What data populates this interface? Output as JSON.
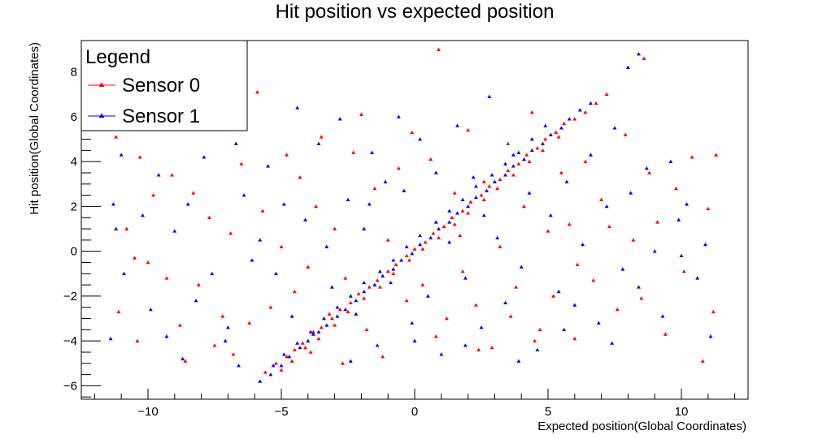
{
  "chart_data": {
    "type": "scatter",
    "title": "Hit position vs expected position",
    "xlabel": "Expected position(Global Coordinates)",
    "ylabel": "Hit position(Global Coordinates)",
    "xlim": [
      -12.5,
      12.5
    ],
    "ylim": [
      -6.6,
      9.4
    ],
    "xticks": [
      -10,
      -5,
      0,
      5,
      10
    ],
    "xtick_labels": [
      "−10",
      "−5",
      "0",
      "5",
      "10"
    ],
    "yticks": [
      -6,
      -4,
      -2,
      0,
      2,
      4,
      6,
      8
    ],
    "ytick_labels": [
      "−6",
      "−4",
      "−2",
      "0",
      "2",
      "4",
      "6",
      "8"
    ],
    "grid": false,
    "legend": {
      "title": "Legend",
      "placement": "top-left",
      "entries": [
        "Sensor 0",
        "Sensor 1"
      ]
    },
    "colors": {
      "Sensor 0": "#ff0000",
      "Sensor 1": "#0000ff"
    },
    "series": [
      {
        "name": "Sensor 0",
        "color": "#ff0000",
        "points": [
          [
            -5.6,
            -5.4
          ],
          [
            -5.2,
            -5.0
          ],
          [
            -4.8,
            -4.7
          ],
          [
            -4.5,
            -4.4
          ],
          [
            -4.2,
            -4.1
          ],
          [
            -3.8,
            -3.6
          ],
          [
            -3.5,
            -3.4
          ],
          [
            -3.1,
            -3.0
          ],
          [
            -2.8,
            -2.6
          ],
          [
            -2.4,
            -2.3
          ],
          [
            -2.1,
            -1.9
          ],
          [
            -1.7,
            -1.6
          ],
          [
            -1.4,
            -1.3
          ],
          [
            -1.0,
            -0.9
          ],
          [
            -0.7,
            -0.6
          ],
          [
            -0.3,
            -0.2
          ],
          [
            0.0,
            0.1
          ],
          [
            0.4,
            0.4
          ],
          [
            0.7,
            0.8
          ],
          [
            1.1,
            1.1
          ],
          [
            1.4,
            1.5
          ],
          [
            1.8,
            1.8
          ],
          [
            2.1,
            2.2
          ],
          [
            2.5,
            2.5
          ],
          [
            2.8,
            2.9
          ],
          [
            3.2,
            3.2
          ],
          [
            3.5,
            3.6
          ],
          [
            3.9,
            3.9
          ],
          [
            4.2,
            4.3
          ],
          [
            4.6,
            4.6
          ],
          [
            4.9,
            5.0
          ],
          [
            5.3,
            5.3
          ],
          [
            5.6,
            5.7
          ],
          [
            6.0,
            5.9
          ],
          [
            6.4,
            6.2
          ],
          [
            6.8,
            6.6
          ],
          [
            7.2,
            7.0
          ],
          [
            8.6,
            8.6
          ],
          [
            -5.0,
            -5.3
          ],
          [
            -4.6,
            -4.9
          ],
          [
            -4.1,
            -4.3
          ],
          [
            -3.6,
            -3.9
          ],
          [
            -3.0,
            -3.3
          ],
          [
            -2.5,
            -2.7
          ],
          [
            -1.9,
            -2.1
          ],
          [
            -1.3,
            -1.6
          ],
          [
            -0.8,
            -1.0
          ],
          [
            -0.2,
            -0.4
          ],
          [
            0.3,
            0.1
          ],
          [
            0.9,
            0.6
          ],
          [
            1.5,
            1.2
          ],
          [
            2.0,
            1.7
          ],
          [
            2.6,
            2.3
          ],
          [
            3.1,
            2.8
          ],
          [
            3.7,
            3.4
          ],
          [
            4.3,
            4.0
          ],
          [
            4.8,
            4.5
          ],
          [
            5.4,
            5.1
          ],
          [
            -11.2,
            5.1
          ],
          [
            -10.3,
            4.2
          ],
          [
            -10.8,
            1.0
          ],
          [
            -10.5,
            -0.3
          ],
          [
            -11.1,
            -2.7
          ],
          [
            -10.4,
            -4.0
          ],
          [
            -10.0,
            -0.5
          ],
          [
            -9.8,
            2.5
          ],
          [
            -9.3,
            -1.2
          ],
          [
            -9.1,
            3.4
          ],
          [
            -8.8,
            -3.3
          ],
          [
            -8.6,
            -4.9
          ],
          [
            -8.3,
            2.6
          ],
          [
            -8.1,
            -1.5
          ],
          [
            -7.7,
            1.5
          ],
          [
            -7.5,
            -4.2
          ],
          [
            -6.9,
            0.8
          ],
          [
            -6.5,
            3.9
          ],
          [
            -6.2,
            -3.2
          ],
          [
            -5.9,
            7.1
          ],
          [
            -5.7,
            1.8
          ],
          [
            -5.4,
            -2.5
          ],
          [
            -5.0,
            0.2
          ],
          [
            -4.8,
            4.3
          ],
          [
            -4.5,
            -1.8
          ],
          [
            -4.3,
            3.3
          ],
          [
            -4.0,
            -0.7
          ],
          [
            -3.7,
            2.0
          ],
          [
            -3.5,
            5.1
          ],
          [
            -3.2,
            -2.8
          ],
          [
            -3.0,
            1.0
          ],
          [
            -2.6,
            -1.2
          ],
          [
            -2.3,
            4.4
          ],
          [
            -2.0,
            6.1
          ],
          [
            -1.8,
            -3.5
          ],
          [
            -1.5,
            2.8
          ],
          [
            -1.2,
            -4.7
          ],
          [
            -1.0,
            0.5
          ],
          [
            -0.6,
            3.7
          ],
          [
            -0.3,
            -2.2
          ],
          [
            -0.1,
            5.3
          ],
          [
            0.3,
            -1.5
          ],
          [
            0.6,
            4.1
          ],
          [
            0.9,
            9.0
          ],
          [
            1.2,
            -3.0
          ],
          [
            1.5,
            2.6
          ],
          [
            1.8,
            -0.9
          ],
          [
            2.0,
            5.4
          ],
          [
            2.3,
            -2.4
          ],
          [
            2.6,
            3.1
          ],
          [
            2.9,
            -4.3
          ],
          [
            3.2,
            0.2
          ],
          [
            3.5,
            4.8
          ],
          [
            3.8,
            -1.6
          ],
          [
            4.1,
            2.0
          ],
          [
            4.4,
            6.2
          ],
          [
            4.7,
            -3.5
          ],
          [
            5.0,
            0.9
          ],
          [
            5.2,
            -2.0
          ],
          [
            5.5,
            3.5
          ],
          [
            5.8,
            1.2
          ],
          [
            6.1,
            -0.6
          ],
          [
            6.4,
            4.0
          ],
          [
            6.7,
            -1.3
          ],
          [
            7.0,
            2.3
          ],
          [
            7.3,
            1.1
          ],
          [
            7.6,
            -2.6
          ],
          [
            7.9,
            5.2
          ],
          [
            8.2,
            0.5
          ],
          [
            8.5,
            -2.1
          ],
          [
            8.8,
            3.5
          ],
          [
            9.1,
            1.3
          ],
          [
            9.4,
            -3.7
          ],
          [
            9.8,
            2.8
          ],
          [
            10.1,
            -0.9
          ],
          [
            10.4,
            4.2
          ],
          [
            10.8,
            -4.9
          ],
          [
            11.0,
            1.9
          ],
          [
            11.3,
            4.3
          ],
          [
            11.2,
            -2.7
          ],
          [
            -6.8,
            -4.6
          ],
          [
            -7.2,
            -2.9
          ],
          [
            -3.9,
            -4.5
          ],
          [
            -2.7,
            -5.0
          ],
          [
            0.8,
            -3.8
          ],
          [
            2.4,
            -4.4
          ],
          [
            4.5,
            -4.0
          ],
          [
            6.0,
            -3.9
          ],
          [
            3.6,
            -2.9
          ],
          [
            1.7,
            0.7
          ]
        ]
      },
      {
        "name": "Sensor 1",
        "color": "#0000ff",
        "points": [
          [
            -5.8,
            -5.8
          ],
          [
            -5.4,
            -5.5
          ],
          [
            -5.0,
            -5.1
          ],
          [
            -4.7,
            -4.7
          ],
          [
            -4.3,
            -4.3
          ],
          [
            -4.0,
            -4.0
          ],
          [
            -3.6,
            -3.6
          ],
          [
            -3.3,
            -3.3
          ],
          [
            -2.9,
            -2.9
          ],
          [
            -2.6,
            -2.6
          ],
          [
            -2.2,
            -2.2
          ],
          [
            -1.9,
            -1.8
          ],
          [
            -1.5,
            -1.5
          ],
          [
            -1.2,
            -1.1
          ],
          [
            -0.8,
            -0.8
          ],
          [
            -0.5,
            -0.4
          ],
          [
            -0.1,
            -0.1
          ],
          [
            0.2,
            0.3
          ],
          [
            0.6,
            0.6
          ],
          [
            0.9,
            1.0
          ],
          [
            1.3,
            1.3
          ],
          [
            1.6,
            1.7
          ],
          [
            2.0,
            2.0
          ],
          [
            2.3,
            2.4
          ],
          [
            2.7,
            2.7
          ],
          [
            3.0,
            3.1
          ],
          [
            3.4,
            3.4
          ],
          [
            3.7,
            3.8
          ],
          [
            4.1,
            4.1
          ],
          [
            4.4,
            4.5
          ],
          [
            4.8,
            4.8
          ],
          [
            5.1,
            5.2
          ],
          [
            5.5,
            5.5
          ],
          [
            5.8,
            5.9
          ],
          [
            6.2,
            6.3
          ],
          [
            6.6,
            6.6
          ],
          [
            8.4,
            8.8
          ],
          [
            8.0,
            8.2
          ],
          [
            -5.3,
            -5.1
          ],
          [
            -4.9,
            -4.6
          ],
          [
            -4.4,
            -4.1
          ],
          [
            -3.9,
            -3.6
          ],
          [
            -3.4,
            -3.0
          ],
          [
            -2.9,
            -2.5
          ],
          [
            -2.4,
            -2.0
          ],
          [
            -1.9,
            -1.4
          ],
          [
            -1.3,
            -0.9
          ],
          [
            -0.8,
            -0.4
          ],
          [
            -0.3,
            0.2
          ],
          [
            0.2,
            0.7
          ],
          [
            0.8,
            1.3
          ],
          [
            1.3,
            1.8
          ],
          [
            1.8,
            2.3
          ],
          [
            2.3,
            2.9
          ],
          [
            2.9,
            3.4
          ],
          [
            3.4,
            3.9
          ],
          [
            3.9,
            4.4
          ],
          [
            4.4,
            5.0
          ],
          [
            -11.0,
            4.3
          ],
          [
            -11.3,
            2.1
          ],
          [
            -11.2,
            1.0
          ],
          [
            -10.9,
            -1.0
          ],
          [
            -11.4,
            -3.9
          ],
          [
            -10.2,
            1.6
          ],
          [
            -9.9,
            -2.6
          ],
          [
            -9.6,
            3.4
          ],
          [
            -9.3,
            -3.8
          ],
          [
            -9.0,
            0.9
          ],
          [
            -8.7,
            -4.8
          ],
          [
            -8.5,
            2.1
          ],
          [
            -8.2,
            -2.2
          ],
          [
            -7.9,
            4.2
          ],
          [
            -7.6,
            -1.0
          ],
          [
            -7.1,
            -4.0
          ],
          [
            -6.7,
            4.8
          ],
          [
            -6.4,
            2.5
          ],
          [
            -6.1,
            -0.4
          ],
          [
            -5.8,
            0.5
          ],
          [
            -5.5,
            3.8
          ],
          [
            -5.2,
            -1.0
          ],
          [
            -4.9,
            2.1
          ],
          [
            -4.6,
            -2.9
          ],
          [
            -4.4,
            6.4
          ],
          [
            -4.1,
            1.4
          ],
          [
            -3.8,
            -3.7
          ],
          [
            -3.6,
            4.8
          ],
          [
            -3.3,
            0.2
          ],
          [
            -3.1,
            -1.6
          ],
          [
            -2.8,
            5.9
          ],
          [
            -2.5,
            2.3
          ],
          [
            -2.2,
            -2.8
          ],
          [
            -1.9,
            1.0
          ],
          [
            -1.6,
            4.4
          ],
          [
            -1.4,
            -4.2
          ],
          [
            -1.1,
            3.1
          ],
          [
            -0.9,
            -1.4
          ],
          [
            -0.6,
            6.0
          ],
          [
            -0.4,
            2.7
          ],
          [
            -0.1,
            -3.2
          ],
          [
            0.2,
            5.0
          ],
          [
            0.5,
            -2.0
          ],
          [
            0.8,
            3.5
          ],
          [
            1.0,
            -4.6
          ],
          [
            1.3,
            0.4
          ],
          [
            1.6,
            5.6
          ],
          [
            1.9,
            -1.2
          ],
          [
            2.2,
            3.3
          ],
          [
            2.5,
            -3.4
          ],
          [
            2.8,
            6.9
          ],
          [
            3.1,
            0.6
          ],
          [
            3.4,
            -2.3
          ],
          [
            3.7,
            4.3
          ],
          [
            4.0,
            -0.7
          ],
          [
            4.3,
            2.6
          ],
          [
            4.6,
            -4.4
          ],
          [
            4.9,
            5.6
          ],
          [
            5.1,
            1.6
          ],
          [
            5.4,
            -1.8
          ],
          [
            5.7,
            3.1
          ],
          [
            6.0,
            -2.4
          ],
          [
            6.3,
            0.3
          ],
          [
            6.6,
            4.3
          ],
          [
            6.9,
            -3.2
          ],
          [
            7.2,
            2.0
          ],
          [
            7.5,
            5.5
          ],
          [
            7.8,
            -0.8
          ],
          [
            8.1,
            2.6
          ],
          [
            8.4,
            -1.6
          ],
          [
            8.7,
            3.7
          ],
          [
            9.0,
            0.0
          ],
          [
            9.3,
            -2.9
          ],
          [
            9.6,
            4.0
          ],
          [
            9.9,
            1.4
          ],
          [
            10.2,
            2.1
          ],
          [
            10.6,
            -1.2
          ],
          [
            10.9,
            0.3
          ],
          [
            11.1,
            -3.8
          ],
          [
            10.0,
            -0.2
          ],
          [
            -6.6,
            -5.1
          ],
          [
            -7.0,
            -3.4
          ],
          [
            -2.4,
            -4.9
          ],
          [
            0.0,
            -4.0
          ],
          [
            1.9,
            -4.2
          ],
          [
            3.9,
            -4.9
          ],
          [
            5.6,
            -3.5
          ],
          [
            7.4,
            -4.1
          ],
          [
            2.6,
            1.6
          ],
          [
            -1.7,
            2.1
          ]
        ]
      }
    ]
  }
}
